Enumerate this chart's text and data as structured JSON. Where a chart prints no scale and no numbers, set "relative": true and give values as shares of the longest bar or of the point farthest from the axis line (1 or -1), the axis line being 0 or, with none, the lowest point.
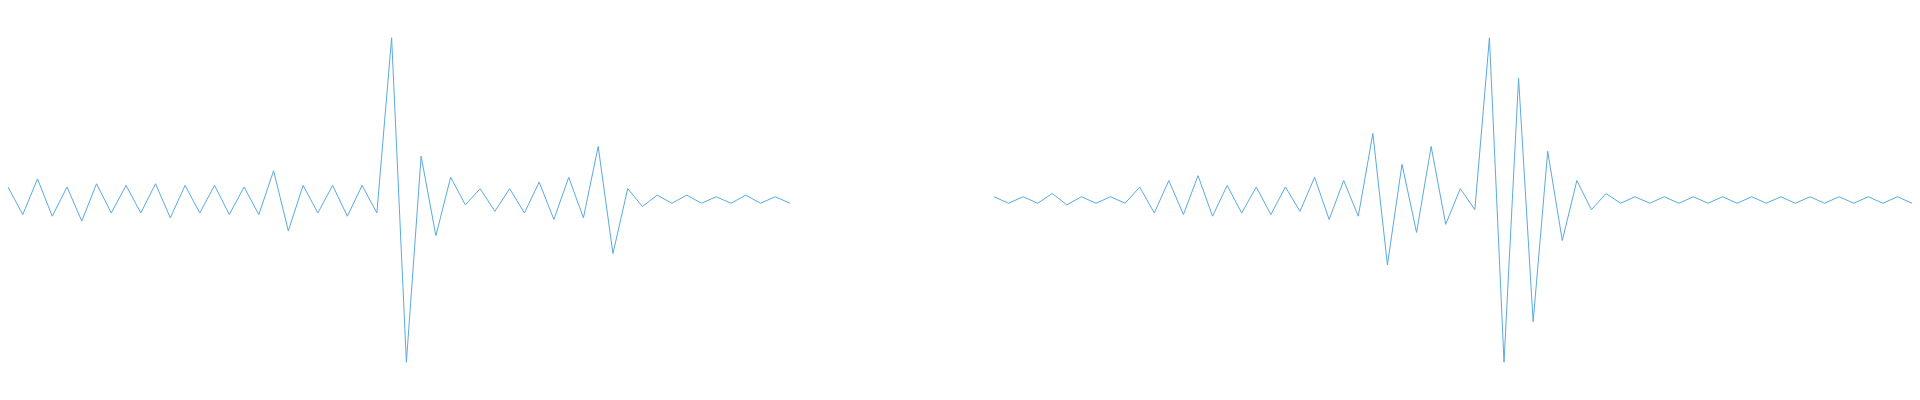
{
  "chart_data": [
    {
      "type": "line",
      "relative": true,
      "color": "#5aaae0",
      "categories": [
        null,
        null,
        null,
        null,
        null,
        null,
        null,
        null,
        null,
        null,
        null,
        null,
        null,
        null,
        null,
        null,
        null,
        null,
        null,
        null,
        null,
        null,
        null,
        null,
        null,
        null,
        null,
        null,
        null,
        null,
        null,
        null,
        null,
        null,
        null,
        null,
        null,
        null,
        null,
        null,
        null,
        null,
        null,
        null,
        null,
        null,
        null,
        null,
        null,
        null,
        null,
        null,
        null,
        null
      ],
      "values": [
        0.54,
        0.455,
        0.565,
        0.45,
        0.54,
        0.435,
        0.55,
        0.46,
        0.545,
        0.46,
        0.55,
        0.445,
        0.545,
        0.46,
        0.545,
        0.455,
        0.54,
        0.455,
        0.59,
        0.405,
        0.545,
        0.46,
        0.545,
        0.45,
        0.545,
        0.46,
        1,
        0,
        0.635,
        0.39,
        0.57,
        0.485,
        0.535,
        0.465,
        0.535,
        0.46,
        0.555,
        0.44,
        0.57,
        0.445,
        0.665,
        0.335,
        0.535,
        0.48,
        0.515,
        0.49,
        0.515,
        0.49,
        0.51,
        0.49,
        0.515,
        0.49,
        0.51,
        0.49
      ]
    },
    {
      "type": "line",
      "relative": true,
      "color": "#5aaae0",
      "categories": [
        null,
        null,
        null,
        null,
        null,
        null,
        null,
        null,
        null,
        null,
        null,
        null,
        null,
        null,
        null,
        null,
        null,
        null,
        null,
        null,
        null,
        null,
        null,
        null,
        null,
        null,
        null,
        null,
        null,
        null,
        null,
        null,
        null,
        null,
        null,
        null,
        null,
        null,
        null,
        null,
        null,
        null,
        null,
        null,
        null,
        null,
        null,
        null,
        null,
        null,
        null,
        null,
        null,
        null,
        null,
        null,
        null,
        null,
        null,
        null,
        null,
        null,
        null,
        null
      ],
      "values": [
        0.51,
        0.49,
        0.51,
        0.49,
        0.52,
        0.485,
        0.51,
        0.49,
        0.51,
        0.49,
        0.54,
        0.46,
        0.56,
        0.455,
        0.575,
        0.45,
        0.545,
        0.46,
        0.54,
        0.455,
        0.54,
        0.465,
        0.57,
        0.44,
        0.56,
        0.45,
        0.705,
        0.3,
        0.61,
        0.4,
        0.665,
        0.425,
        0.535,
        0.47,
        1,
        0,
        0.875,
        0.125,
        0.65,
        0.375,
        0.56,
        0.47,
        0.52,
        0.49,
        0.51,
        0.49,
        0.51,
        0.49,
        0.51,
        0.49,
        0.51,
        0.49,
        0.51,
        0.49,
        0.51,
        0.49,
        0.51,
        0.49,
        0.51,
        0.49,
        0.51,
        0.49,
        0.51,
        0.49
      ]
    }
  ]
}
